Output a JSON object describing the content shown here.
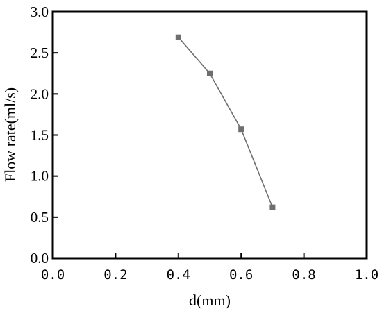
{
  "chart_data": {
    "type": "line",
    "title": "",
    "xlabel": "d(mm)",
    "ylabel": "Flow rate(ml/s)",
    "xlim": [
      0.0,
      1.0
    ],
    "ylim": [
      0.0,
      3.0
    ],
    "x_ticks": [
      "0.0",
      "0.2",
      "0.4",
      "0.6",
      "0.8",
      "1.0"
    ],
    "y_ticks": [
      "0.0",
      "0.5",
      "1.0",
      "1.5",
      "2.0",
      "2.5",
      "3.0"
    ],
    "series": [
      {
        "x": [
          0.4,
          0.5,
          0.6,
          0.7
        ],
        "y": [
          2.69,
          2.25,
          1.57,
          0.62
        ],
        "marker": "square",
        "color": "#6e6e6e"
      }
    ],
    "grid": false,
    "legend": "none"
  }
}
